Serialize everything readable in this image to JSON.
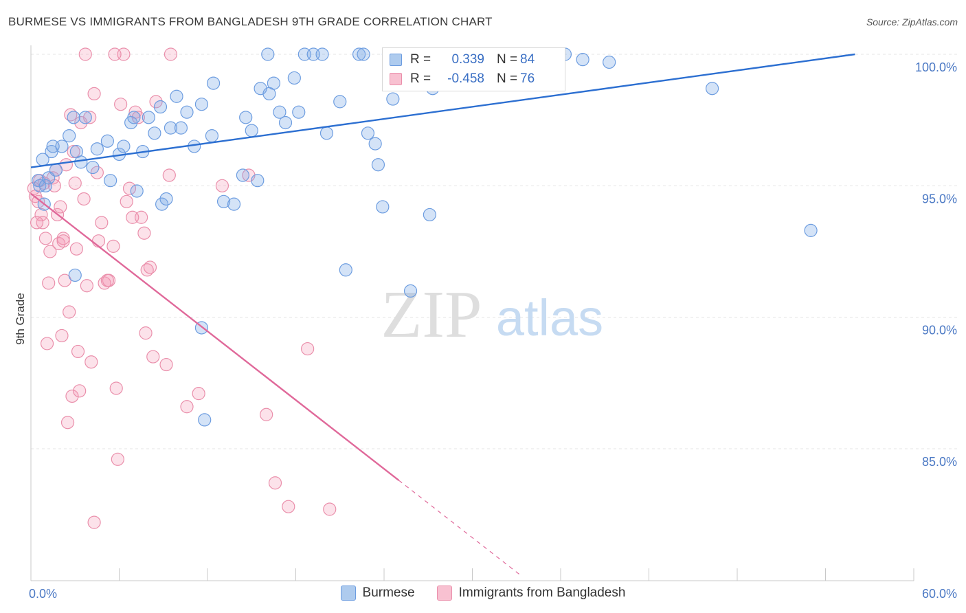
{
  "header": {
    "title": "BURMESE VS IMMIGRANTS FROM BANGLADESH 9TH GRADE CORRELATION CHART",
    "source": "Source: ZipAtlas.com"
  },
  "watermark": {
    "zip": "ZIP",
    "atlas": "atlas"
  },
  "legend": {
    "rows": [
      {
        "r_label": "R =",
        "r_value": "0.339",
        "n_label": "N =",
        "n_value": "84",
        "color": "#aecbee"
      },
      {
        "r_label": "R =",
        "r_value": "-0.458",
        "n_label": "N =",
        "n_value": "76",
        "color": "#f8c1d1"
      }
    ]
  },
  "bottom_legend": [
    {
      "label": "Burmese",
      "color": "#aecbee",
      "border": "#6d9de0"
    },
    {
      "label": "Immigrants from Bangladesh",
      "color": "#f8c1d1",
      "border": "#ea8fab"
    }
  ],
  "colors": {
    "blue_fill": "rgba(122,168,230,0.32)",
    "blue_stroke": "#6d9de0",
    "blue_line": "#2c6fd1",
    "pink_fill": "rgba(244,150,180,0.28)",
    "pink_stroke": "#ea8fab",
    "pink_line": "#e0699a",
    "tick_label": "#4a78c4",
    "grid": "#e4e4e4"
  },
  "chart_data": {
    "type": "scatter",
    "title": "BURMESE VS IMMIGRANTS FROM BANGLADESH 9TH GRADE CORRELATION CHART",
    "xlabel": "",
    "ylabel": "9th Grade",
    "xlim": [
      0,
      60
    ],
    "ylim": [
      80.5,
      100.8
    ],
    "x_tick_labels": [
      "0.0%",
      "60.0%"
    ],
    "y_ticks": [
      85,
      90,
      95,
      100
    ],
    "y_tick_labels": [
      "85.0%",
      "90.0%",
      "95.0%",
      "100.0%"
    ],
    "grid": "horizontal dashed",
    "legend_position": "top-center",
    "series": [
      {
        "name": "Burmese",
        "r": 0.339,
        "n": 84,
        "trend": {
          "x": [
            0,
            56
          ],
          "y": [
            95.7,
            100.0
          ]
        },
        "points": [
          [
            0.5,
            95.2
          ],
          [
            0.6,
            95.0
          ],
          [
            0.8,
            96.0
          ],
          [
            1.0,
            95.0
          ],
          [
            1.2,
            95.3
          ],
          [
            1.4,
            96.3
          ],
          [
            1.7,
            95.6
          ],
          [
            2.1,
            96.5
          ],
          [
            2.6,
            96.9
          ],
          [
            3.1,
            96.3
          ],
          [
            3.4,
            95.9
          ],
          [
            3.7,
            97.6
          ],
          [
            4.2,
            95.7
          ],
          [
            4.5,
            96.4
          ],
          [
            5.2,
            96.7
          ],
          [
            5.4,
            95.2
          ],
          [
            6.0,
            96.2
          ],
          [
            6.3,
            96.5
          ],
          [
            6.8,
            97.4
          ],
          [
            7.0,
            97.6
          ],
          [
            7.6,
            96.3
          ],
          [
            8.0,
            97.6
          ],
          [
            8.4,
            97.0
          ],
          [
            8.8,
            98.0
          ],
          [
            9.5,
            97.2
          ],
          [
            9.9,
            98.4
          ],
          [
            10.2,
            97.2
          ],
          [
            10.6,
            97.8
          ],
          [
            11.1,
            96.5
          ],
          [
            11.6,
            98.1
          ],
          [
            12.3,
            96.9
          ],
          [
            12.4,
            98.9
          ],
          [
            13.1,
            94.4
          ],
          [
            13.8,
            94.3
          ],
          [
            14.4,
            95.4
          ],
          [
            14.6,
            97.6
          ],
          [
            15.0,
            97.1
          ],
          [
            15.4,
            95.2
          ],
          [
            15.6,
            98.7
          ],
          [
            16.1,
            100.0
          ],
          [
            16.2,
            98.5
          ],
          [
            16.5,
            98.9
          ],
          [
            16.9,
            97.8
          ],
          [
            17.3,
            97.4
          ],
          [
            17.9,
            99.1
          ],
          [
            18.2,
            97.8
          ],
          [
            18.6,
            100.0
          ],
          [
            19.2,
            100.0
          ],
          [
            19.8,
            100.0
          ],
          [
            20.1,
            97.0
          ],
          [
            21.0,
            98.2
          ],
          [
            21.4,
            91.8
          ],
          [
            22.3,
            100.0
          ],
          [
            22.6,
            100.0
          ],
          [
            22.9,
            97.0
          ],
          [
            23.4,
            96.6
          ],
          [
            23.6,
            95.8
          ],
          [
            23.9,
            94.2
          ],
          [
            24.3,
            100.0
          ],
          [
            24.6,
            98.3
          ],
          [
            25.4,
            100.0
          ],
          [
            25.8,
            91.0
          ],
          [
            26.4,
            100.0
          ],
          [
            27.1,
            93.9
          ],
          [
            27.3,
            98.7
          ],
          [
            28.3,
            100.0
          ],
          [
            29.5,
            99.8
          ],
          [
            30.2,
            100.0
          ],
          [
            31.2,
            99.9
          ],
          [
            32.8,
            99.9
          ],
          [
            36.3,
            100.0
          ],
          [
            37.5,
            99.8
          ],
          [
            39.3,
            99.7
          ],
          [
            46.3,
            98.7
          ],
          [
            53.0,
            93.3
          ],
          [
            1.5,
            96.5
          ],
          [
            3.0,
            91.6
          ],
          [
            7.2,
            94.8
          ],
          [
            8.9,
            94.3
          ],
          [
            9.2,
            94.5
          ],
          [
            11.6,
            89.6
          ],
          [
            11.8,
            86.1
          ],
          [
            0.9,
            94.3
          ],
          [
            2.9,
            97.6
          ]
        ]
      },
      {
        "name": "Immigrants from Bangladesh",
        "r": -0.458,
        "n": 76,
        "trend": {
          "x": [
            0,
            25
          ],
          "y": [
            94.7,
            83.8
          ]
        },
        "points": [
          [
            0.2,
            94.9
          ],
          [
            0.3,
            94.6
          ],
          [
            0.5,
            94.4
          ],
          [
            0.6,
            95.2
          ],
          [
            0.7,
            93.9
          ],
          [
            0.8,
            93.6
          ],
          [
            0.9,
            95.1
          ],
          [
            1.0,
            93.0
          ],
          [
            1.1,
            89.0
          ],
          [
            1.2,
            91.3
          ],
          [
            1.3,
            92.5
          ],
          [
            1.5,
            95.3
          ],
          [
            1.7,
            95.6
          ],
          [
            1.8,
            93.9
          ],
          [
            1.9,
            92.8
          ],
          [
            2.0,
            94.2
          ],
          [
            2.1,
            89.3
          ],
          [
            2.2,
            93.0
          ],
          [
            2.3,
            91.4
          ],
          [
            2.4,
            95.8
          ],
          [
            2.5,
            86.0
          ],
          [
            2.6,
            90.2
          ],
          [
            2.7,
            97.7
          ],
          [
            2.8,
            87.0
          ],
          [
            2.9,
            96.3
          ],
          [
            3.0,
            95.1
          ],
          [
            3.1,
            92.6
          ],
          [
            3.2,
            88.7
          ],
          [
            3.3,
            87.2
          ],
          [
            3.4,
            97.4
          ],
          [
            3.6,
            94.5
          ],
          [
            3.8,
            91.2
          ],
          [
            4.0,
            97.6
          ],
          [
            4.1,
            88.3
          ],
          [
            4.3,
            98.5
          ],
          [
            4.5,
            95.5
          ],
          [
            4.6,
            92.9
          ],
          [
            4.8,
            93.6
          ],
          [
            5.0,
            91.3
          ],
          [
            5.3,
            91.4
          ],
          [
            5.6,
            92.7
          ],
          [
            5.8,
            87.3
          ],
          [
            5.9,
            84.6
          ],
          [
            6.1,
            98.1
          ],
          [
            6.3,
            100.0
          ],
          [
            6.5,
            94.4
          ],
          [
            6.7,
            94.9
          ],
          [
            6.9,
            93.8
          ],
          [
            7.1,
            97.8
          ],
          [
            7.3,
            97.6
          ],
          [
            7.5,
            93.8
          ],
          [
            7.7,
            93.2
          ],
          [
            7.8,
            89.4
          ],
          [
            7.9,
            91.8
          ],
          [
            8.1,
            91.9
          ],
          [
            8.3,
            88.5
          ],
          [
            8.5,
            98.2
          ],
          [
            9.2,
            88.2
          ],
          [
            9.4,
            95.4
          ],
          [
            9.5,
            100.0
          ],
          [
            10.6,
            86.6
          ],
          [
            11.4,
            87.1
          ],
          [
            13.0,
            95.0
          ],
          [
            14.8,
            95.4
          ],
          [
            16.0,
            86.3
          ],
          [
            16.6,
            83.7
          ],
          [
            17.5,
            82.8
          ],
          [
            18.8,
            88.8
          ],
          [
            20.3,
            82.7
          ],
          [
            4.3,
            82.2
          ],
          [
            3.7,
            100.0
          ],
          [
            5.7,
            100.0
          ],
          [
            0.4,
            93.6
          ],
          [
            1.6,
            95.0
          ],
          [
            2.2,
            92.9
          ],
          [
            5.2,
            91.4
          ]
        ]
      }
    ]
  }
}
